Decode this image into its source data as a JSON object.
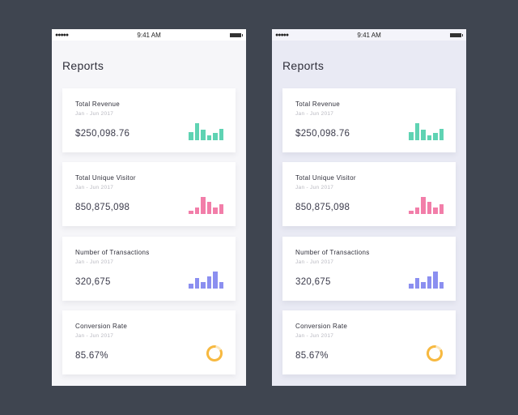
{
  "status": {
    "time": "9:41 AM",
    "signal": "●●●●●"
  },
  "title": "Reports",
  "cards": [
    {
      "title": "Total Revenue",
      "subtitle": "Jan - Jun 2017",
      "value": "$250,098.76",
      "kind": "bars",
      "color": "#5fd3b3",
      "levels": [
        0.5,
        1,
        0.6,
        0.3,
        0.45,
        0.65
      ]
    },
    {
      "title": "Total Unique Visitor",
      "subtitle": "Jan - Jun 2017",
      "value": "850,875,098",
      "kind": "bars",
      "color": "#f27ea9",
      "levels": [
        0.2,
        0.4,
        1,
        0.7,
        0.4,
        0.55
      ]
    },
    {
      "title": "Number of Transactions",
      "subtitle": "Jan - Jun 2017",
      "value": "320,675",
      "kind": "bars",
      "color": "#8b8ff0",
      "levels": [
        0.3,
        0.6,
        0.4,
        0.7,
        1,
        0.4
      ]
    },
    {
      "title": "Conversion Rate",
      "subtitle": "Jan - Jun 2017",
      "value": "85.67%",
      "kind": "donut",
      "color": "#f7b940",
      "percent": 85.67
    }
  ]
}
